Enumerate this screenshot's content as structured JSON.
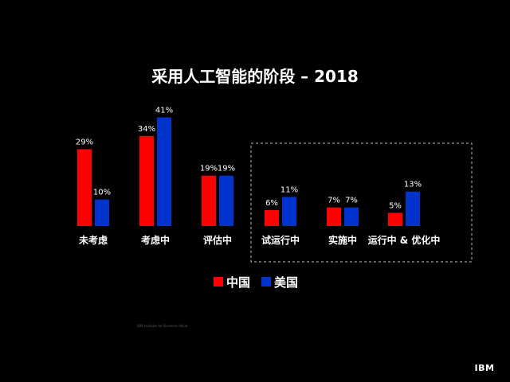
{
  "chart_data": {
    "type": "bar",
    "title": "采用人工智能的阶段 – 2018",
    "categories": [
      "未考虑",
      "考虑中",
      "评估中",
      "试运行中",
      "实施中",
      "运行中 & 优化中"
    ],
    "series": [
      {
        "name": "中国",
        "color": "#ff0000",
        "values": [
          29,
          34,
          19,
          6,
          7,
          5
        ],
        "labels": [
          "29%",
          "34%",
          "19%",
          "6%",
          "7%",
          "5%"
        ]
      },
      {
        "name": "美国",
        "color": "#0033cc",
        "values": [
          10,
          41,
          19,
          11,
          7,
          13
        ],
        "labels": [
          "10%",
          "41%",
          "19%",
          "11%",
          "7%",
          "13%"
        ]
      }
    ],
    "value_unit": "%",
    "legend_position": "bottom",
    "grid": false,
    "highlighted_group": [
      "试运行中",
      "实施中",
      "运行中 & 优化中"
    ]
  },
  "footer": {
    "credit": "IBM Institute for Business Value",
    "logo": "IBM"
  }
}
